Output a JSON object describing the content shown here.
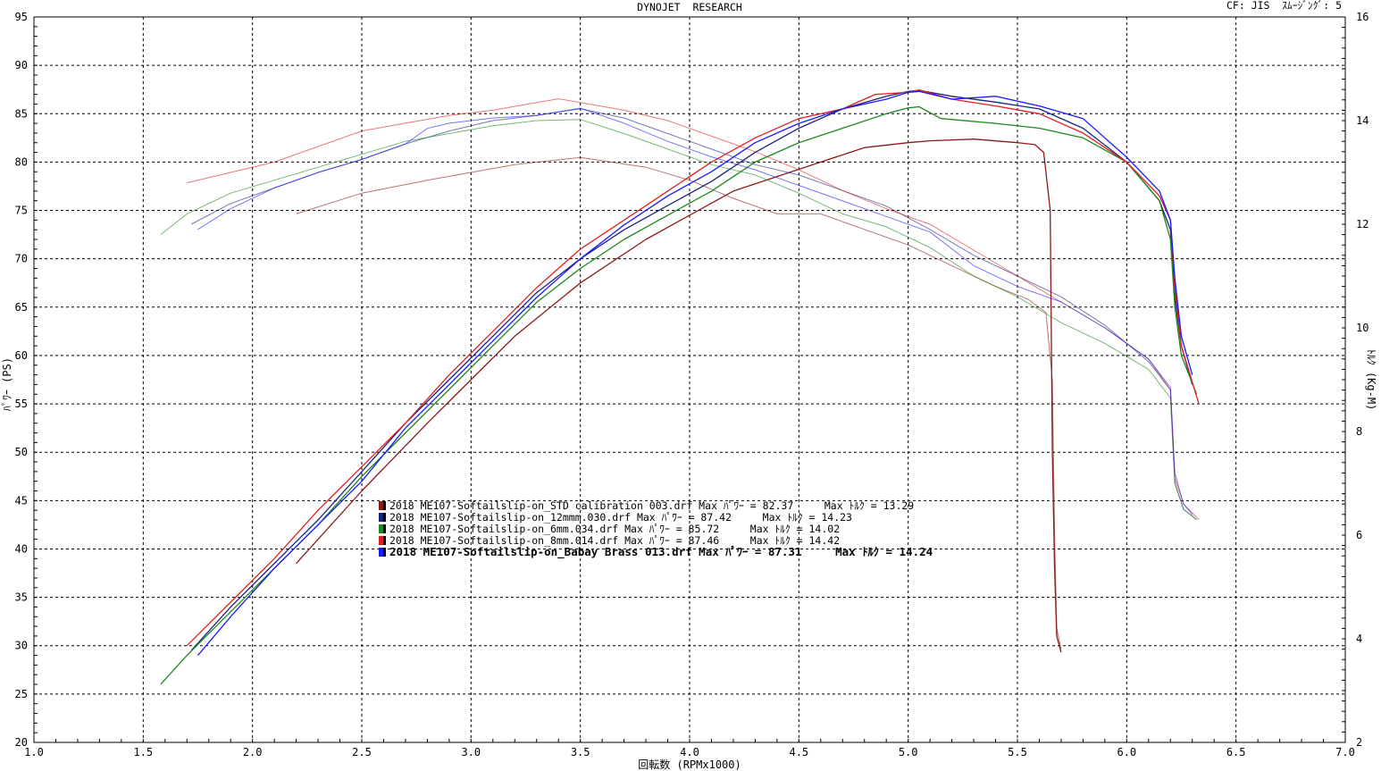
{
  "header": {
    "title": "DYNOJET  RESEARCH",
    "correction": "CF: JIS  ｽﾑｰｼﾞﾝｸﾞ: 5"
  },
  "chart_data": {
    "type": "line",
    "title": "DYNOJET  RESEARCH",
    "xlabel": "回転数 (RPMx1000)",
    "ylabel_left": "ﾊﾟﾜｰ (PS)",
    "ylabel_right": "ﾄﾙｸ (Kg-M)",
    "xlim": [
      1.0,
      7.0
    ],
    "ylim_left": [
      20,
      95
    ],
    "ylim_right": [
      2,
      16
    ],
    "x_ticks": [
      "1.0",
      "1.5",
      "2.0",
      "2.5",
      "3.0",
      "3.5",
      "4.0",
      "4.5",
      "5.0",
      "5.5",
      "6.0",
      "6.5",
      "7.0"
    ],
    "y_ticks_left": [
      "20",
      "25",
      "30",
      "35",
      "40",
      "45",
      "50",
      "55",
      "60",
      "65",
      "70",
      "75",
      "80",
      "85",
      "90",
      "95"
    ],
    "y_ticks_right": [
      "2",
      "4",
      "6",
      "8",
      "10",
      "12",
      "14",
      "16"
    ],
    "grid": true,
    "legend_position": "center-left",
    "legend": [
      {
        "text": "2018 ME107-Softailslip-on_STD calibration 003.drf Max ﾊﾟﾜｰ = 82.37     Max ﾄﾙｸ = 13.29",
        "color": "#8b1a1a",
        "bold": false
      },
      {
        "text": "2018 ME107-Softailslip-on_12mmm.030.drf Max ﾊﾟﾜｰ = 87.42     Max ﾄﾙｸ = 14.23",
        "color": "#1a237e",
        "bold": false
      },
      {
        "text": "2018 ME107-Softailslip-on_6mm.034.drf Max ﾊﾟﾜｰ = 85.72     Max ﾄﾙｸ = 14.02",
        "color": "#1b8a1b",
        "bold": false
      },
      {
        "text": "2018 ME107-Softailslip-on_8mm.014.drf Max ﾊﾟﾜｰ = 87.46     Max ﾄﾙｸ = 14.42",
        "color": "#e02020",
        "bold": false
      },
      {
        "text": "2018 ME107-Softailslip-on_Babay Brass 013.drf Max ﾊﾟﾜｰ = 87.31     Max ﾄﾙｸ = 14.24",
        "color": "#1a1aff",
        "bold": true
      }
    ],
    "series": [
      {
        "name": "STD calibration 003",
        "kind": "power",
        "color": "#8b1a1a",
        "x": [
          2.2,
          2.5,
          2.8,
          3.0,
          3.2,
          3.5,
          3.8,
          4.0,
          4.2,
          4.4,
          4.6,
          4.8,
          5.0,
          5.1,
          5.3,
          5.5,
          5.58,
          5.62,
          5.65,
          5.66,
          5.67,
          5.68,
          5.7
        ],
        "y": [
          38.5,
          46,
          53,
          57.5,
          62,
          67.5,
          72,
          74.5,
          77,
          78.5,
          80,
          81.5,
          82,
          82.2,
          82.37,
          82,
          81.8,
          81,
          75,
          50,
          38,
          31,
          29.3
        ]
      },
      {
        "name": "STD calibration 003",
        "kind": "torque",
        "color": "#8b1a1a",
        "x": [
          2.2,
          2.5,
          2.8,
          3.0,
          3.2,
          3.5,
          3.8,
          4.0,
          4.2,
          4.4,
          4.6,
          4.8,
          5.0,
          5.2,
          5.4,
          5.55,
          5.63,
          5.66,
          5.67,
          5.68,
          5.7
        ],
        "y": [
          12.2,
          12.6,
          12.85,
          13.0,
          13.15,
          13.29,
          13.1,
          12.85,
          12.5,
          12.2,
          12.2,
          11.9,
          11.6,
          11.2,
          10.8,
          10.55,
          10.3,
          9.0,
          6.0,
          4.2,
          3.8
        ]
      },
      {
        "name": "12mmm.030",
        "kind": "power",
        "color": "#1a237e",
        "x": [
          1.72,
          1.9,
          2.1,
          2.3,
          2.5,
          2.7,
          2.9,
          3.1,
          3.3,
          3.5,
          3.7,
          3.9,
          4.1,
          4.3,
          4.5,
          4.7,
          4.9,
          5.0,
          5.05,
          5.2,
          5.4,
          5.6,
          5.8,
          6.0,
          6.15,
          6.2,
          6.22,
          6.25,
          6.3
        ],
        "y": [
          29.5,
          34,
          38.5,
          43,
          48,
          53,
          57.5,
          62,
          66.5,
          70,
          73,
          75.5,
          78,
          81,
          83.5,
          85.5,
          86.8,
          87.3,
          87.42,
          86.8,
          86.2,
          85.5,
          83.5,
          80,
          76,
          73,
          66,
          61,
          57
        ]
      },
      {
        "name": "12mmm.030",
        "kind": "torque",
        "color": "#1a237e",
        "x": [
          1.72,
          1.9,
          2.1,
          2.3,
          2.5,
          2.7,
          2.9,
          3.1,
          3.3,
          3.5,
          3.7,
          3.9,
          4.1,
          4.3,
          4.5,
          4.7,
          4.9,
          5.1,
          5.3,
          5.5,
          5.7,
          5.9,
          6.1,
          6.2,
          6.22,
          6.26,
          6.32
        ],
        "y": [
          12.0,
          12.4,
          12.7,
          13.0,
          13.25,
          13.55,
          13.8,
          14.0,
          14.1,
          14.23,
          14.05,
          13.75,
          13.45,
          13.15,
          12.95,
          12.65,
          12.35,
          11.9,
          11.4,
          11.0,
          10.6,
          10.05,
          9.35,
          8.8,
          7.0,
          6.5,
          6.3
        ]
      },
      {
        "name": "6mm.034",
        "kind": "power",
        "color": "#1b8a1b",
        "x": [
          1.58,
          1.7,
          1.9,
          2.1,
          2.3,
          2.5,
          2.7,
          2.9,
          3.1,
          3.3,
          3.5,
          3.7,
          3.9,
          4.1,
          4.3,
          4.5,
          4.7,
          4.9,
          5.0,
          5.05,
          5.15,
          5.4,
          5.6,
          5.8,
          6.0,
          6.15,
          6.2,
          6.22,
          6.25,
          6.32
        ],
        "y": [
          26,
          29,
          33.5,
          38,
          42.5,
          47.5,
          52,
          56.5,
          61,
          65.5,
          69,
          72,
          74.5,
          77,
          80,
          82,
          83.5,
          85,
          85.6,
          85.72,
          84.5,
          84,
          83.5,
          82.5,
          80,
          76,
          72,
          65,
          60,
          56
        ]
      },
      {
        "name": "6mm.034",
        "kind": "torque",
        "color": "#1b8a1b",
        "x": [
          1.58,
          1.7,
          1.9,
          2.1,
          2.3,
          2.5,
          2.7,
          2.9,
          3.1,
          3.3,
          3.5,
          3.7,
          3.9,
          4.1,
          4.3,
          4.5,
          4.7,
          4.9,
          5.1,
          5.3,
          5.5,
          5.7,
          5.9,
          6.1,
          6.2,
          6.22,
          6.26,
          6.32
        ],
        "y": [
          11.8,
          12.2,
          12.6,
          12.85,
          13.1,
          13.35,
          13.6,
          13.75,
          13.9,
          14.0,
          14.02,
          13.75,
          13.45,
          13.15,
          12.95,
          12.6,
          12.2,
          11.95,
          11.55,
          11.0,
          10.6,
          10.1,
          9.7,
          9.2,
          8.65,
          7.0,
          6.5,
          6.3
        ]
      },
      {
        "name": "8mm.014",
        "kind": "power",
        "color": "#e02020",
        "x": [
          1.7,
          1.9,
          2.1,
          2.3,
          2.5,
          2.7,
          2.9,
          3.1,
          3.3,
          3.5,
          3.7,
          3.9,
          4.1,
          4.3,
          4.5,
          4.7,
          4.85,
          5.0,
          5.05,
          5.2,
          5.4,
          5.6,
          5.8,
          6.0,
          6.15,
          6.2,
          6.22,
          6.25,
          6.33
        ],
        "y": [
          30,
          34.5,
          39,
          44,
          48.5,
          53,
          58,
          62.5,
          67,
          71,
          74,
          77,
          80,
          82.5,
          84.5,
          85.5,
          87,
          87.2,
          87.46,
          86.5,
          85.8,
          85,
          83,
          80,
          76.5,
          74,
          67,
          61,
          55
        ]
      },
      {
        "name": "8mm.014",
        "kind": "torque",
        "color": "#e02020",
        "x": [
          1.7,
          1.9,
          2.1,
          2.3,
          2.5,
          2.7,
          2.9,
          3.1,
          3.3,
          3.4,
          3.5,
          3.7,
          3.9,
          4.1,
          4.3,
          4.5,
          4.7,
          4.9,
          5.1,
          5.3,
          5.5,
          5.7,
          5.9,
          6.1,
          6.2,
          6.22,
          6.26,
          6.33
        ],
        "y": [
          12.8,
          13.0,
          13.2,
          13.5,
          13.8,
          13.95,
          14.1,
          14.2,
          14.35,
          14.42,
          14.35,
          14.2,
          14.0,
          13.7,
          13.4,
          13.05,
          12.65,
          12.3,
          12.0,
          11.5,
          11.0,
          10.5,
          10.0,
          9.4,
          8.8,
          7.1,
          6.6,
          6.3
        ]
      },
      {
        "name": "Babay Brass 013",
        "kind": "power",
        "color": "#1a1aff",
        "x": [
          1.75,
          1.9,
          2.1,
          2.3,
          2.5,
          2.7,
          2.9,
          3.1,
          3.3,
          3.5,
          3.7,
          3.9,
          4.1,
          4.3,
          4.5,
          4.7,
          4.9,
          5.0,
          5.05,
          5.2,
          5.4,
          5.6,
          5.8,
          6.0,
          6.15,
          6.2,
          6.22,
          6.25,
          6.3
        ],
        "y": [
          29,
          33,
          38,
          42.5,
          47,
          52.5,
          57,
          61.5,
          66,
          70,
          73.5,
          76.5,
          79,
          82,
          84,
          85.5,
          86.5,
          87.2,
          87.31,
          86.5,
          86.8,
          85.8,
          84.5,
          80.5,
          77,
          74,
          68,
          62,
          58
        ]
      },
      {
        "name": "Babay Brass 013",
        "kind": "torque",
        "color": "#1a1aff",
        "x": [
          1.75,
          1.9,
          2.1,
          2.3,
          2.5,
          2.7,
          2.8,
          2.9,
          3.1,
          3.3,
          3.5,
          3.7,
          3.9,
          4.1,
          4.3,
          4.5,
          4.7,
          4.9,
          5.1,
          5.3,
          5.5,
          5.7,
          5.9,
          6.1,
          6.2,
          6.22,
          6.26,
          6.3
        ],
        "y": [
          11.9,
          12.3,
          12.7,
          13.0,
          13.25,
          13.55,
          13.85,
          13.95,
          14.05,
          14.1,
          14.24,
          13.95,
          13.6,
          13.3,
          13.05,
          12.75,
          12.45,
          12.15,
          11.85,
          11.2,
          10.8,
          10.5,
          10.0,
          9.4,
          8.85,
          7.2,
          6.6,
          6.4
        ]
      }
    ]
  }
}
